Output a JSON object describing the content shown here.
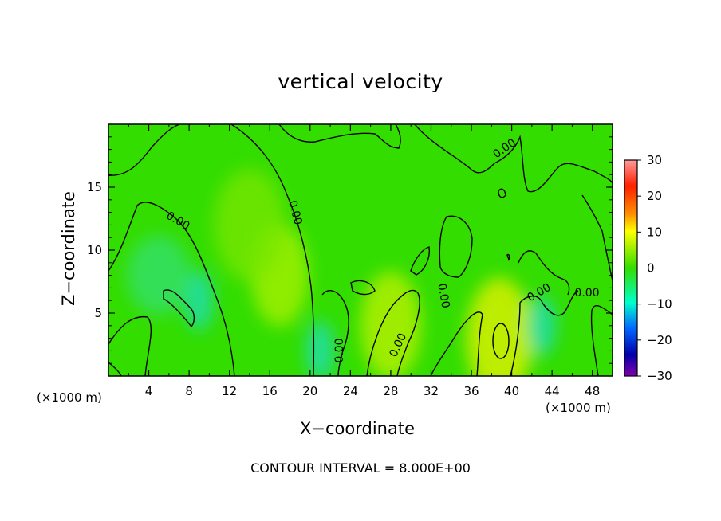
{
  "chart_data": {
    "type": "heatmap",
    "title": "vertical velocity",
    "xlabel": "X−coordinate",
    "ylabel": "Z−coordinate",
    "x_unit_left": "(×1000 m)",
    "x_unit_right": "(×1000 m)",
    "xlim": [
      0,
      50
    ],
    "ylim": [
      0,
      20
    ],
    "xticks": [
      4,
      8,
      12,
      16,
      20,
      24,
      28,
      32,
      36,
      40,
      44,
      48
    ],
    "xtick_labels": [
      "4",
      "8",
      "12",
      "16",
      "20",
      "24",
      "28",
      "32",
      "36",
      "40",
      "44",
      "48"
    ],
    "yticks": [
      5,
      10,
      15
    ],
    "ytick_labels": [
      "5",
      "10",
      "15"
    ],
    "colorbar": {
      "min": -30,
      "max": 30,
      "ticks": [
        30,
        20,
        10,
        0,
        -10,
        -20,
        -30
      ],
      "tick_labels": [
        "30",
        "20",
        "10",
        "0",
        "−10",
        "−20",
        "−30"
      ],
      "colors": [
        "#ff9a9a",
        "#ff2000",
        "#ff9000",
        "#ffff00",
        "#33dd00",
        "#00ffcc",
        "#0066ff",
        "#0000aa",
        "#8000aa"
      ]
    },
    "contour_labels": [
      "0.00",
      "0.00",
      "0.00",
      "0.00",
      "0.00",
      "0.00",
      "0.00",
      "0.00"
    ],
    "background_color": "#33dd00",
    "updraft_regions": [
      {
        "x": 17,
        "z": 8,
        "value": 6
      },
      {
        "x": 28,
        "z": 4,
        "value": 7
      },
      {
        "x": 38.8,
        "z": 3,
        "value": 9
      }
    ],
    "downdraft_regions": [
      {
        "x": 9,
        "z": 6,
        "value": -8
      },
      {
        "x": 21,
        "z": 2,
        "value": -6
      },
      {
        "x": 43,
        "z": 4,
        "value": -6
      }
    ]
  },
  "footer": "CONTOUR INTERVAL = 8.000E+00"
}
